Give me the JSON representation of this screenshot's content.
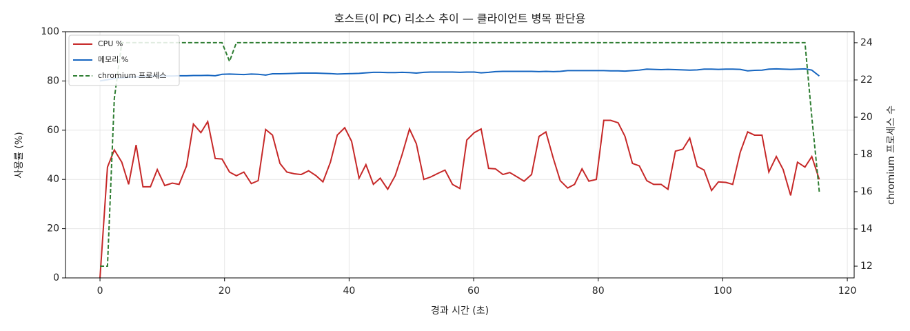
{
  "chart_data": {
    "type": "line",
    "title": "호스트(이 PC) 리소스 추이 — 클라이언트 병목 판단용",
    "xlabel": "경과 시간 (초)",
    "ylabel": "사용률 (%)",
    "y2label": "chromium 프로세스 수",
    "x": [
      0,
      1.2,
      2.3,
      3.5,
      4.6,
      5.8,
      6.9,
      8.1,
      9.2,
      10.4,
      11.6,
      12.7,
      13.9,
      15.0,
      16.2,
      17.3,
      18.5,
      19.6,
      20.8,
      21.9,
      23.1,
      24.3,
      25.4,
      26.6,
      27.7,
      28.9,
      30.0,
      31.2,
      32.3,
      33.5,
      34.7,
      35.8,
      37.0,
      38.1,
      39.3,
      40.4,
      41.6,
      42.7,
      43.9,
      45.0,
      46.2,
      47.4,
      48.5,
      49.7,
      50.8,
      52.0,
      53.1,
      54.3,
      55.4,
      56.6,
      57.8,
      58.9,
      60.1,
      61.2,
      62.4,
      63.5,
      64.7,
      65.8,
      67.0,
      68.1,
      69.3,
      70.5,
      71.6,
      72.8,
      73.9,
      75.1,
      76.2,
      77.4,
      78.5,
      79.7,
      80.9,
      82.0,
      83.2,
      84.3,
      85.5,
      86.6,
      87.8,
      88.9,
      90.1,
      91.2,
      92.4,
      93.6,
      94.7,
      95.9,
      97.0,
      98.2,
      99.3,
      100.5,
      101.6,
      102.8,
      104.0,
      105.1,
      106.3,
      107.4,
      108.6,
      109.7,
      110.9,
      112.0,
      113.2,
      114.3,
      115.5
    ],
    "series": [
      {
        "name": "CPU %",
        "color": "#c62828",
        "values": [
          0,
          45,
          52,
          47,
          38,
          54,
          37,
          37,
          44,
          37.5,
          38.5,
          38,
          45.5,
          62.5,
          59,
          63.5,
          48.5,
          48.3,
          43,
          41.5,
          43,
          38.3,
          39.5,
          60.3,
          58,
          46.5,
          43,
          42.3,
          42,
          43.5,
          41.5,
          39,
          47,
          58,
          61,
          55.5,
          40.5,
          46,
          38,
          40.5,
          36,
          41.5,
          50,
          60.5,
          54.5,
          40,
          41,
          42.5,
          43.8,
          38,
          36.3,
          56,
          59,
          60.5,
          44.5,
          44.3,
          42,
          42.8,
          41,
          39.3,
          42,
          57.5,
          59.3,
          48.5,
          39.5,
          36.5,
          38,
          44.3,
          39.3,
          40,
          64,
          64,
          63,
          57.5,
          46.5,
          45.5,
          39.5,
          38,
          38,
          36,
          51.5,
          52.3,
          56.8,
          45.3,
          43.8,
          35.5,
          39,
          38.8,
          38,
          51,
          59.3,
          58,
          58,
          43,
          49.3,
          44,
          33.5,
          47,
          45,
          49.3,
          40
        ]
      },
      {
        "name": "메모리 %",
        "color": "#1565c0",
        "values": [
          80,
          80.5,
          81,
          81.3,
          81.5,
          81.7,
          81.8,
          82,
          82,
          82,
          82,
          82.1,
          82.1,
          82.2,
          82.2,
          82.3,
          82.1,
          82.7,
          82.8,
          82.7,
          82.6,
          82.8,
          82.7,
          82.4,
          82.9,
          82.9,
          83,
          83.1,
          83.2,
          83.2,
          83.2,
          83.1,
          83,
          82.8,
          82.9,
          83,
          83.1,
          83.3,
          83.5,
          83.5,
          83.4,
          83.4,
          83.5,
          83.4,
          83.2,
          83.5,
          83.6,
          83.6,
          83.6,
          83.6,
          83.5,
          83.6,
          83.6,
          83.3,
          83.5,
          83.8,
          83.9,
          83.9,
          83.9,
          83.9,
          83.9,
          83.8,
          83.9,
          83.8,
          83.9,
          84.2,
          84.2,
          84.2,
          84.2,
          84.2,
          84.2,
          84.1,
          84.1,
          84,
          84.2,
          84.4,
          84.8,
          84.7,
          84.6,
          84.7,
          84.6,
          84.5,
          84.4,
          84.5,
          84.8,
          84.8,
          84.7,
          84.8,
          84.8,
          84.7,
          84.1,
          84.3,
          84.4,
          84.8,
          84.9,
          84.8,
          84.7,
          84.8,
          84.9,
          84.4,
          82
        ]
      },
      {
        "name": "chromium 프로세스",
        "color": "#2e7d32",
        "dashed": true,
        "axis": "y2",
        "values": [
          12,
          12,
          21,
          24,
          24,
          24,
          24,
          24,
          24,
          24,
          24,
          24,
          24,
          24,
          24,
          24,
          24,
          24,
          23,
          24,
          24,
          24,
          24,
          24,
          24,
          24,
          24,
          24,
          24,
          24,
          24,
          24,
          24,
          24,
          24,
          24,
          24,
          24,
          24,
          24,
          24,
          24,
          24,
          24,
          24,
          24,
          24,
          24,
          24,
          24,
          24,
          24,
          24,
          24,
          24,
          24,
          24,
          24,
          24,
          24,
          24,
          24,
          24,
          24,
          24,
          24,
          24,
          24,
          24,
          24,
          24,
          24,
          24,
          24,
          24,
          24,
          24,
          24,
          24,
          24,
          24,
          24,
          24,
          24,
          24,
          24,
          24,
          24,
          24,
          24,
          24,
          24,
          24,
          24,
          24,
          24,
          24,
          24,
          24,
          20,
          16
        ]
      }
    ],
    "xlim": [
      -5.54,
      121.1
    ],
    "xticks": [
      0,
      20,
      40,
      60,
      80,
      100,
      120
    ],
    "ylim": [
      0,
      100
    ],
    "yticks": [
      0,
      20,
      40,
      60,
      80,
      100
    ],
    "y2lim": [
      11.37,
      24.59
    ],
    "y2ticks": [
      12,
      14,
      16,
      18,
      20,
      22,
      24
    ],
    "grid": true,
    "legend": "upper-left"
  }
}
